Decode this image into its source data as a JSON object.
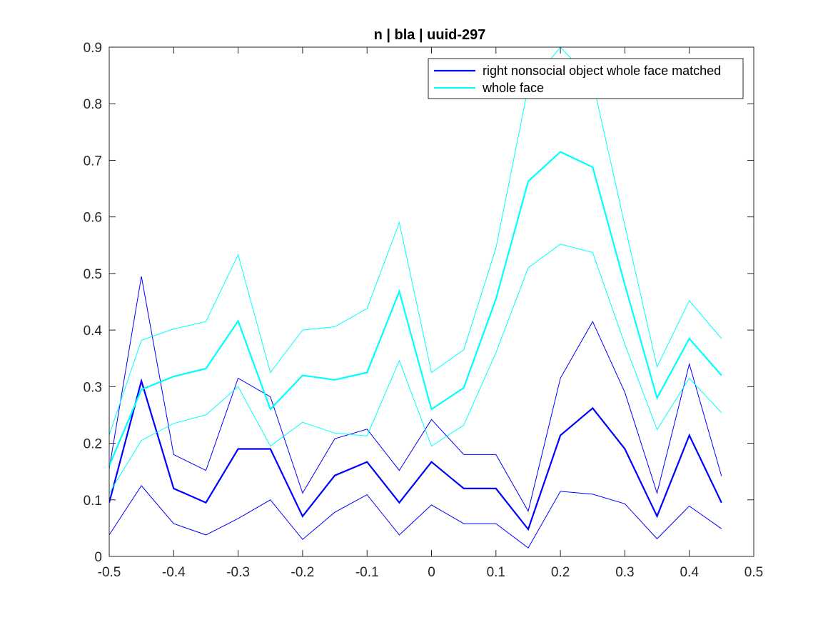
{
  "chart_data": {
    "type": "line",
    "title": "n | bla | uuid-297",
    "xlabel": "",
    "ylabel": "",
    "xlim": [
      -0.5,
      0.5
    ],
    "ylim": [
      0,
      0.9
    ],
    "x_ticks": [
      -0.5,
      -0.4,
      -0.3,
      -0.2,
      -0.1,
      0,
      0.1,
      0.2,
      0.3,
      0.4,
      0.5
    ],
    "x_tick_labels": [
      "-0.5",
      "-0.4",
      "-0.3",
      "-0.2",
      "-0.1",
      "0",
      "0.1",
      "0.2",
      "0.3",
      "0.4",
      "0.5"
    ],
    "y_ticks": [
      0,
      0.1,
      0.2,
      0.3,
      0.4,
      0.5,
      0.6,
      0.7,
      0.8,
      0.9
    ],
    "y_tick_labels": [
      "0",
      "0.1",
      "0.2",
      "0.3",
      "0.4",
      "0.5",
      "0.6",
      "0.7",
      "0.8",
      "0.9"
    ],
    "grid": false,
    "legend_position": "top-right",
    "x": [
      -0.5,
      -0.45,
      -0.4,
      -0.35,
      -0.3,
      -0.25,
      -0.2,
      -0.15,
      -0.1,
      -0.05,
      0,
      0.05,
      0.1,
      0.15,
      0.2,
      0.25,
      0.3,
      0.35,
      0.4,
      0.45
    ],
    "series": [
      {
        "name": "right nonsocial object whole face matched",
        "color": "#0000ff",
        "in_legend": true,
        "line_weight": "thick",
        "values": [
          0.095,
          0.31,
          0.12,
          0.095,
          0.19,
          0.19,
          0.071,
          0.143,
          0.167,
          0.095,
          0.167,
          0.12,
          0.12,
          0.048,
          0.214,
          0.262,
          0.19,
          0.071,
          0.214,
          0.095
        ]
      },
      {
        "name": "",
        "color": "#0000ff",
        "in_legend": false,
        "line_weight": "thin",
        "values": [
          0.155,
          0.495,
          0.18,
          0.152,
          0.315,
          0.282,
          0.112,
          0.208,
          0.225,
          0.152,
          0.242,
          0.18,
          0.18,
          0.08,
          0.315,
          0.415,
          0.29,
          0.112,
          0.34,
          0.142
        ]
      },
      {
        "name": "",
        "color": "#0000ff",
        "in_legend": false,
        "line_weight": "thin",
        "values": [
          0.038,
          0.125,
          0.058,
          0.038,
          0.067,
          0.1,
          0.03,
          0.078,
          0.109,
          0.038,
          0.091,
          0.058,
          0.058,
          0.015,
          0.115,
          0.11,
          0.093,
          0.031,
          0.089,
          0.049
        ]
      },
      {
        "name": "whole face",
        "color": "#00ffff",
        "in_legend": true,
        "line_weight": "thick",
        "values": [
          0.16,
          0.295,
          0.318,
          0.332,
          0.416,
          0.26,
          0.32,
          0.312,
          0.325,
          0.468,
          0.26,
          0.298,
          0.455,
          0.663,
          0.715,
          0.688,
          0.48,
          0.28,
          0.385,
          0.32
        ]
      },
      {
        "name": "",
        "color": "#00ffff",
        "in_legend": false,
        "line_weight": "thin",
        "values": [
          0.215,
          0.382,
          0.402,
          0.415,
          0.533,
          0.325,
          0.4,
          0.406,
          0.438,
          0.59,
          0.325,
          0.365,
          0.545,
          0.83,
          0.9,
          0.84,
          0.585,
          0.335,
          0.452,
          0.385
        ]
      },
      {
        "name": "",
        "color": "#00ffff",
        "in_legend": false,
        "line_weight": "thin",
        "values": [
          0.112,
          0.205,
          0.235,
          0.25,
          0.3,
          0.195,
          0.237,
          0.218,
          0.213,
          0.346,
          0.195,
          0.232,
          0.36,
          0.51,
          0.552,
          0.537,
          0.375,
          0.224,
          0.315,
          0.254
        ]
      }
    ]
  }
}
